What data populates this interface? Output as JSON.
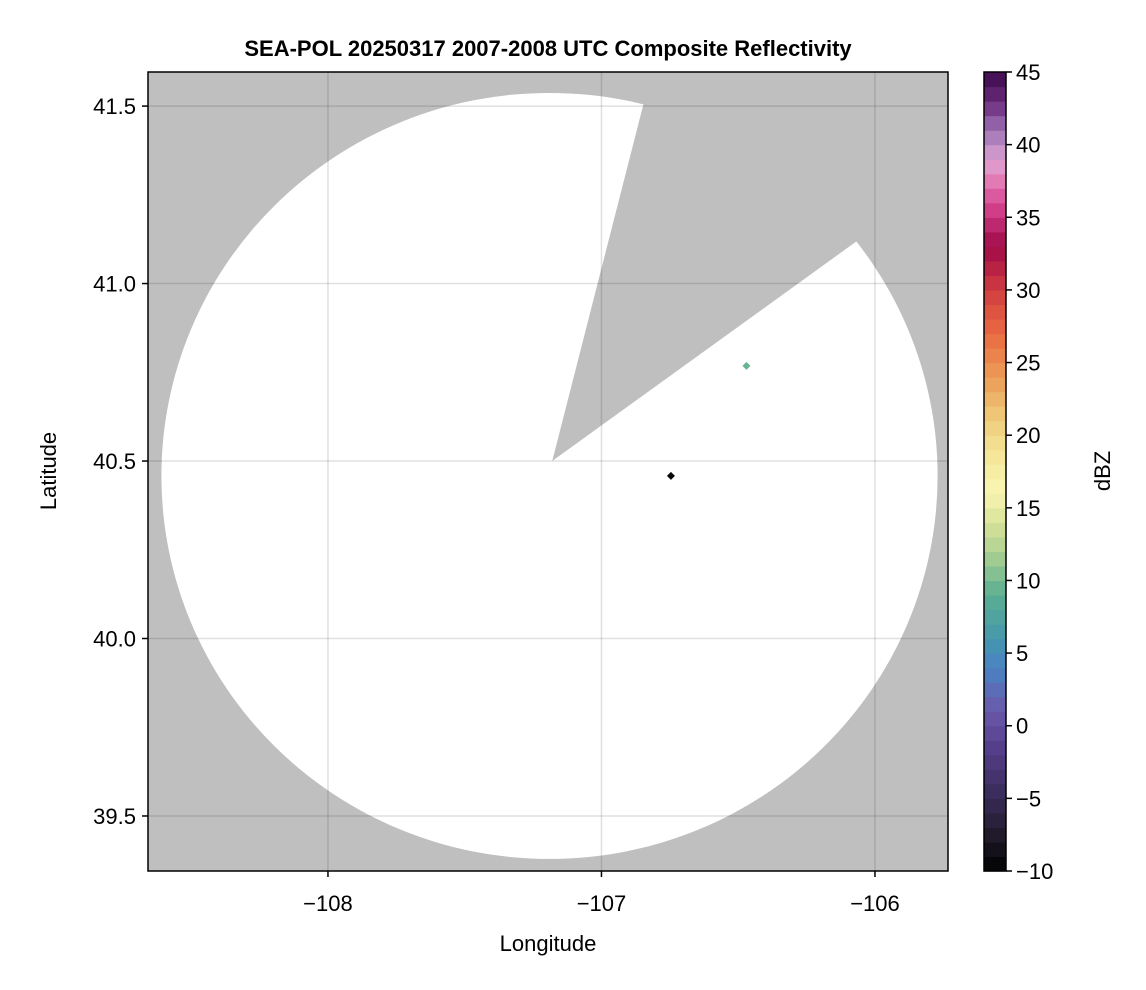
{
  "chart_data": {
    "type": "heatmap",
    "title": "SEA-POL 20250317 2007-2008 UTC Composite Reflectivity",
    "xlabel": "Longitude",
    "ylabel": "Latitude",
    "xlim": [
      -108.658,
      -105.733
    ],
    "ylim": [
      39.345,
      41.596
    ],
    "xticks": [
      -108,
      -107,
      -106
    ],
    "xtick_labels": [
      "−108",
      "−107",
      "−106"
    ],
    "yticks": [
      39.5,
      40.0,
      40.5,
      41.0,
      41.5
    ],
    "ytick_labels": [
      "39.5",
      "40.0",
      "40.5",
      "41.0",
      "41.5"
    ],
    "grid": true,
    "missing_color": "#bfbfbf",
    "coverage": {
      "center": [
        -107.19,
        40.458
      ],
      "radius_deg_lat": 1.079,
      "radius_deg_lon": 1.419,
      "blocked_sector": [
        [
          -107.18,
          40.5
        ],
        [
          -106.841,
          41.522
        ],
        [
          -106.062,
          41.122
        ]
      ]
    },
    "points": [
      {
        "lon": -106.746,
        "lat": 40.458,
        "dbz": -10
      },
      {
        "lon": -106.47,
        "lat": 40.768,
        "dbz": 9
      }
    ],
    "colorbar": {
      "label": "dBZ",
      "range": [
        -10,
        45
      ],
      "ticks": [
        -10,
        -5,
        0,
        5,
        10,
        15,
        20,
        25,
        30,
        35,
        40,
        45
      ],
      "tick_labels": [
        "−10",
        "−5",
        "0",
        "5",
        "10",
        "15",
        "20",
        "25",
        "30",
        "35",
        "40",
        "45"
      ],
      "bin_size": 1,
      "stops": [
        [
          -10,
          "#000000"
        ],
        [
          -8,
          "#1c1722"
        ],
        [
          -5,
          "#372a55"
        ],
        [
          -1,
          "#5a4292"
        ],
        [
          1,
          "#6a58a8"
        ],
        [
          4,
          "#4a82c4"
        ],
        [
          6,
          "#4597ac"
        ],
        [
          9,
          "#5aae92"
        ],
        [
          12,
          "#aed292"
        ],
        [
          14,
          "#d8e298"
        ],
        [
          16,
          "#f8f5b2"
        ],
        [
          18,
          "#f6eba0"
        ],
        [
          21,
          "#efce7c"
        ],
        [
          24,
          "#eb9c56"
        ],
        [
          27,
          "#e96b42"
        ],
        [
          30,
          "#d03c40"
        ],
        [
          33,
          "#a00a48"
        ],
        [
          36,
          "#d84893"
        ],
        [
          38,
          "#e58cbf"
        ],
        [
          39,
          "#dba2d2"
        ],
        [
          41,
          "#9e72b5"
        ],
        [
          43,
          "#6a2a7a"
        ],
        [
          45,
          "#3d0a4d"
        ]
      ]
    }
  }
}
